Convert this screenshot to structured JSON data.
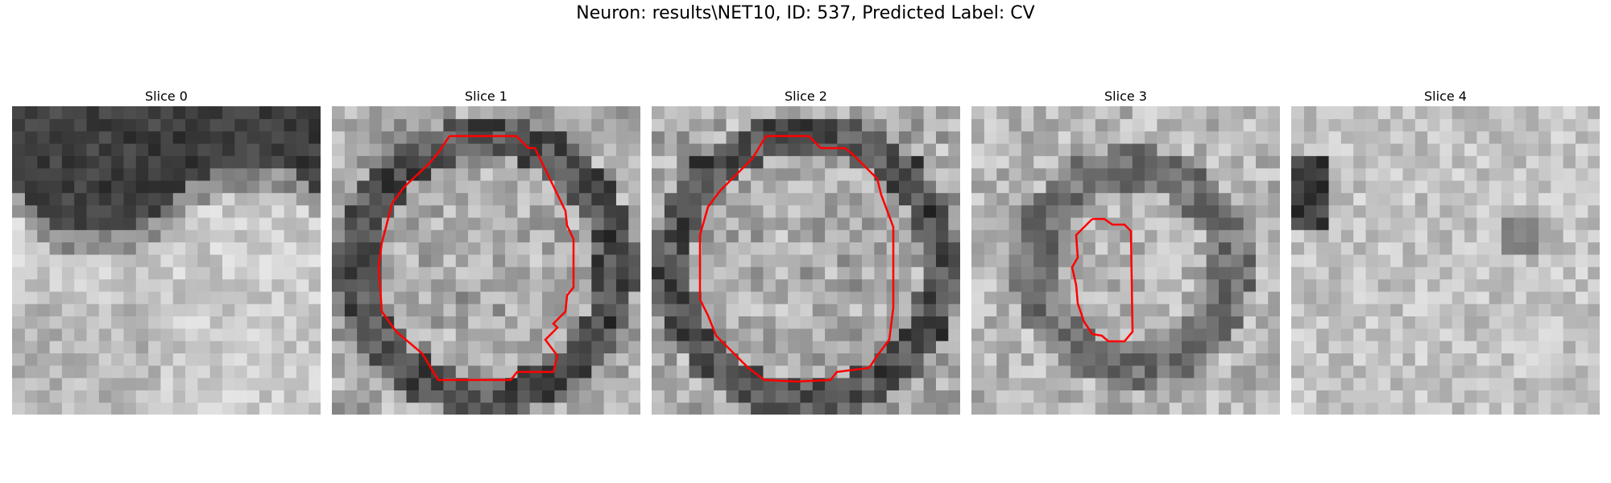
{
  "figure": {
    "title": "Neuron: results\\NET10, ID: 537, Predicted Label: CV"
  },
  "panels": [
    {
      "title": "Slice 0",
      "has_contour": false
    },
    {
      "title": "Slice 1",
      "has_contour": true
    },
    {
      "title": "Slice 2",
      "has_contour": true
    },
    {
      "title": "Slice 3",
      "has_contour": true
    },
    {
      "title": "Slice 4",
      "has_contour": false
    }
  ],
  "colors": {
    "contour": "#ff0000"
  }
}
